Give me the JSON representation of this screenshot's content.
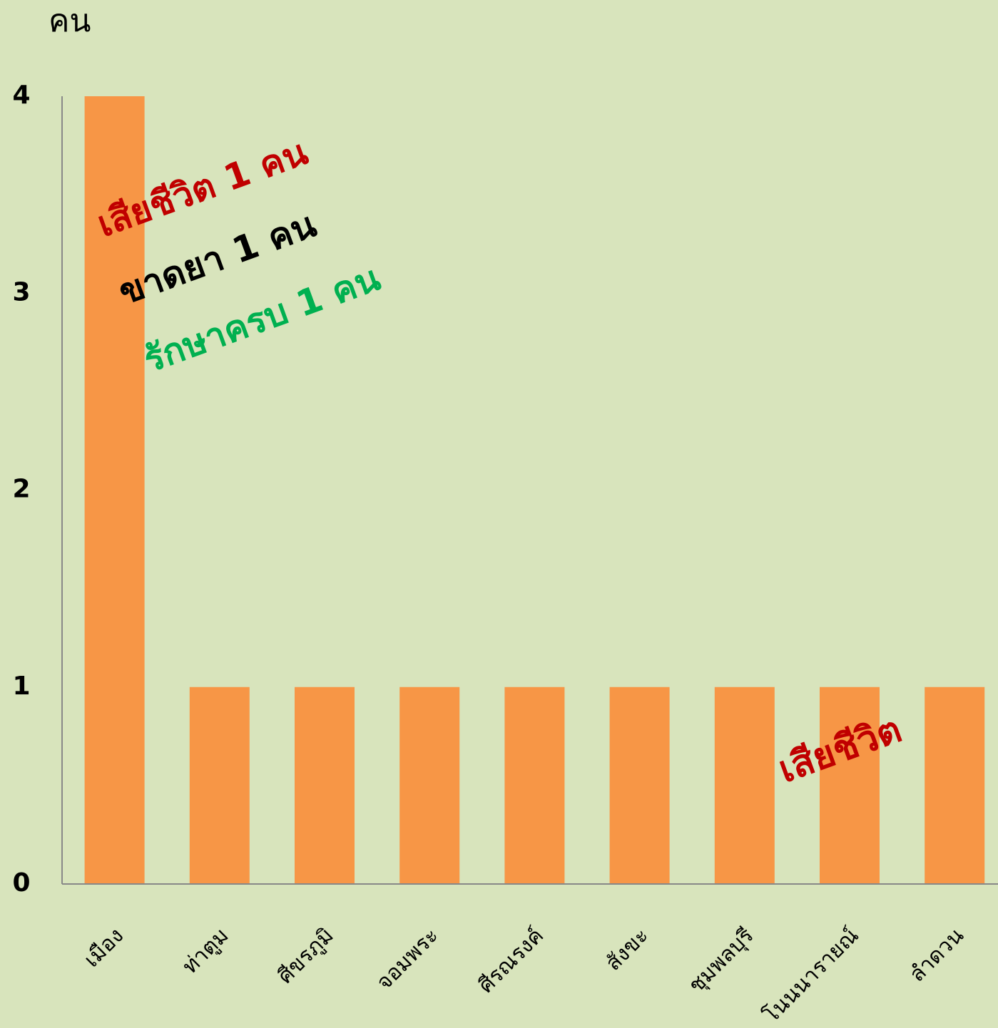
{
  "chart_data": {
    "type": "bar",
    "y_label": "คน",
    "categories": [
      "เมือง",
      "ท่าตูม",
      "ศีขรภูมิ",
      "จอมพระ",
      "ศีรณรงค์",
      "สังขะ",
      "ชุมพลบุรี",
      "โนนนารายณ์",
      "ลำดวน"
    ],
    "values": [
      4,
      1,
      1,
      1,
      1,
      1,
      1,
      1,
      1
    ],
    "color": "#f79646",
    "ylim": [
      0,
      4
    ],
    "yticks": [
      0,
      1,
      2,
      3,
      4
    ],
    "grid": false,
    "annotations": [
      {
        "text": "เสียชีวิต 1 คน",
        "color": "#c00000"
      },
      {
        "text": "ขาดยา 1 คน",
        "color": "#000000"
      },
      {
        "text": "รักษาครบ 1 คน",
        "color": "#00b050"
      },
      {
        "text": "เสียชีวิต",
        "color": "#c00000"
      }
    ]
  }
}
